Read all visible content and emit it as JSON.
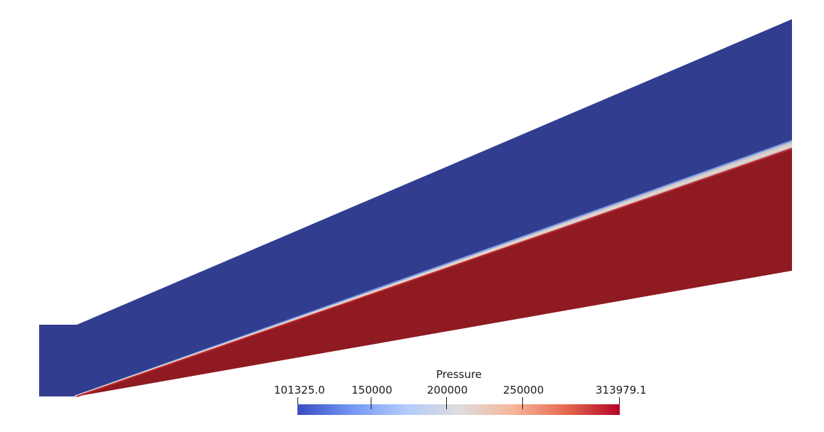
{
  "scalar_bar": {
    "title": "Pressure",
    "min_label": "101325.0",
    "max_label": "313979.1",
    "tick_labels": [
      "150000",
      "200000",
      "250000"
    ],
    "range": [
      101325.0,
      313979.1
    ],
    "ticks": [
      150000,
      200000,
      250000
    ],
    "colormap": [
      "#3b4cc0",
      "#7396f5",
      "#b0cbfc",
      "#dddddd",
      "#f6b69a",
      "#e5694f",
      "#b40426"
    ]
  },
  "field": {
    "variable": "Pressure",
    "low_color": "#313e8f",
    "high_color": "#8f1a22",
    "shock_band_color": "#e0d2c8"
  }
}
